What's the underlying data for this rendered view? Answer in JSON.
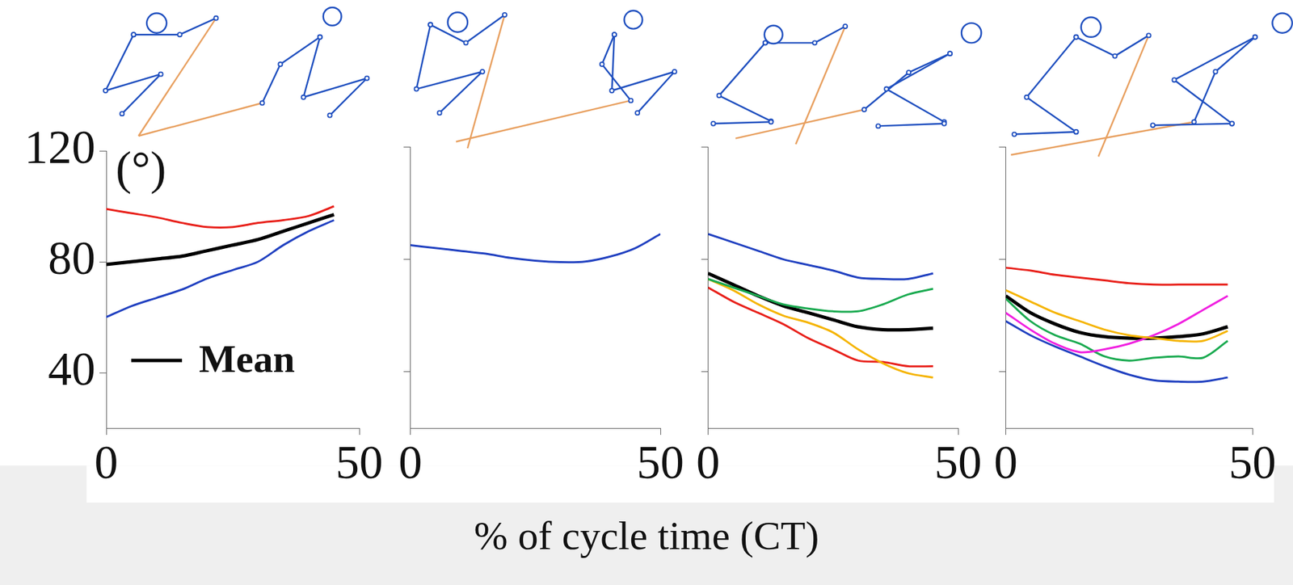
{
  "x_label": "% of cycle time (CT)",
  "chart_data": [
    {
      "type": "line",
      "y_label": "(°)",
      "x": [
        0,
        5,
        10,
        15,
        20,
        25,
        30,
        35,
        40,
        45
      ],
      "series": [
        {
          "color": "#e8201a",
          "values": [
            99,
            97.5,
            96,
            94,
            92.5,
            92.5,
            94,
            95,
            96.5,
            100
          ]
        },
        {
          "name": "Mean",
          "color": "#000000",
          "values": [
            79,
            80,
            81,
            82,
            84,
            86,
            88,
            91,
            94,
            97
          ]
        },
        {
          "color": "#2040c0",
          "values": [
            60,
            64,
            67,
            70,
            74,
            77,
            80,
            86,
            91,
            95
          ]
        }
      ],
      "xlim": [
        0,
        50
      ],
      "xticks": [
        0,
        50
      ],
      "ylim": [
        20,
        120
      ],
      "yticks": [
        40,
        80,
        120
      ],
      "grid": false,
      "legend": "lower left"
    },
    {
      "type": "line",
      "x": [
        0,
        5,
        10,
        15,
        20,
        25,
        30,
        35,
        40,
        45,
        50
      ],
      "series": [
        {
          "color": "#2040c0",
          "values": [
            85,
            84,
            83,
            82,
            80.5,
            79.5,
            79,
            79.2,
            81,
            84,
            89
          ]
        }
      ],
      "xlim": [
        0,
        50
      ],
      "xticks": [
        0,
        50
      ],
      "ylim": [
        20,
        120
      ],
      "yticks": [
        40,
        80,
        120
      ],
      "grid": false,
      "tick_labels": "x"
    },
    {
      "type": "line",
      "x": [
        0,
        5,
        10,
        15,
        20,
        25,
        30,
        35,
        40,
        45
      ],
      "series": [
        {
          "color": "#2040c0",
          "values": [
            89,
            86,
            83,
            80,
            78,
            76,
            73.5,
            73,
            73,
            75
          ]
        },
        {
          "color": "#1aaa50",
          "values": [
            73,
            70,
            67,
            64,
            62.5,
            61.5,
            61.5,
            64,
            67.5,
            69.5
          ]
        },
        {
          "color": "#f5b400",
          "values": [
            73,
            69,
            64,
            60,
            57.5,
            54,
            48,
            43,
            39.5,
            38
          ]
        },
        {
          "color": "#e8201a",
          "values": [
            70,
            65,
            61,
            57,
            52,
            48,
            44,
            43.5,
            42,
            42
          ]
        },
        {
          "color": "#000000",
          "values": [
            75,
            71,
            67,
            63.5,
            61,
            58.5,
            56,
            55,
            55,
            55.5
          ]
        }
      ],
      "xlim": [
        0,
        50
      ],
      "xticks": [
        0,
        50
      ],
      "ylim": [
        20,
        120
      ],
      "yticks": [
        40,
        80,
        120
      ],
      "grid": false,
      "tick_labels": "x"
    },
    {
      "type": "line",
      "x": [
        0,
        5,
        10,
        15,
        20,
        25,
        30,
        35,
        40,
        45
      ],
      "series": [
        {
          "color": "#e8201a",
          "values": [
            77,
            76,
            74.5,
            73.5,
            72.5,
            71.5,
            71,
            71,
            71,
            71
          ]
        },
        {
          "color": "#f5b400",
          "values": [
            69,
            65,
            61,
            58,
            55,
            53,
            52,
            51,
            51,
            54.5
          ]
        },
        {
          "color": "#f020e0",
          "values": [
            61,
            55,
            50,
            47,
            48,
            50,
            53,
            57,
            62,
            67
          ]
        },
        {
          "color": "#1aaa50",
          "values": [
            66,
            58,
            53,
            50,
            45.5,
            44,
            45,
            45.5,
            45,
            51
          ]
        },
        {
          "color": "#2040c0",
          "values": [
            58,
            53,
            49,
            45.5,
            42,
            39,
            37,
            36.5,
            36.5,
            38
          ]
        },
        {
          "color": "#000000",
          "values": [
            67,
            61,
            57,
            54,
            52.5,
            52,
            52,
            52.5,
            53.5,
            56
          ]
        }
      ],
      "xlim": [
        0,
        50
      ],
      "xticks": [
        0,
        50
      ],
      "ylim": [
        20,
        120
      ],
      "yticks": [
        40,
        80,
        120
      ],
      "grid": false,
      "tick_labels": "x"
    }
  ]
}
